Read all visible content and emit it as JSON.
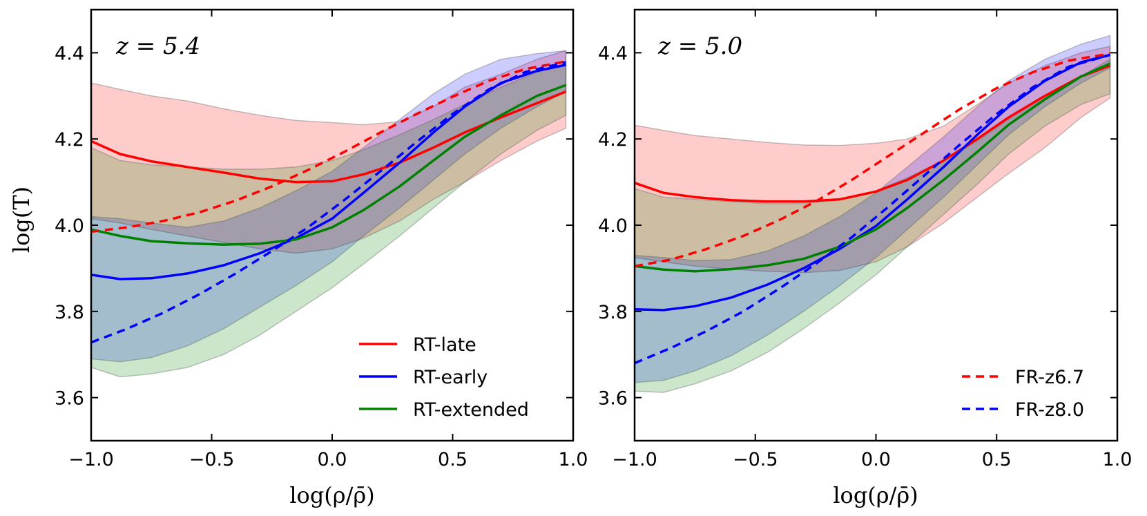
{
  "figure": {
    "ylabel": "log(T)"
  },
  "chart_data": [
    {
      "type": "line",
      "annotation": "z = 5.4",
      "xlabel": "log(ρ/ρ̄)",
      "ylabel": "log(T)",
      "xlim": [
        -1.0,
        1.0
      ],
      "ylim": [
        3.5,
        4.5
      ],
      "xticks": [
        "−1.0",
        "−0.5",
        "0.0",
        "0.5",
        "1.0"
      ],
      "xtick_values": [
        -1.0,
        -0.5,
        0.0,
        0.5,
        1.0
      ],
      "yticks": [
        "3.6",
        "3.8",
        "4.0",
        "4.2",
        "4.4"
      ],
      "ytick_values": [
        3.6,
        3.8,
        4.0,
        4.2,
        4.4
      ],
      "legend": {
        "placement": "lower-right",
        "entries": [
          "RT-late",
          "RT-early",
          "RT-extended"
        ]
      },
      "series": [
        {
          "name": "RT-late",
          "color": "#ff0000",
          "style": "solid",
          "x": [
            -1.0,
            -0.88,
            -0.75,
            -0.6,
            -0.45,
            -0.3,
            -0.15,
            0.0,
            0.13,
            0.28,
            0.42,
            0.55,
            0.7,
            0.85,
            0.97
          ],
          "y": [
            4.195,
            4.165,
            4.148,
            4.135,
            4.122,
            4.108,
            4.1,
            4.102,
            4.118,
            4.145,
            4.18,
            4.215,
            4.25,
            4.283,
            4.31
          ],
          "band_upper": [
            4.33,
            4.315,
            4.3,
            4.288,
            4.27,
            4.255,
            4.243,
            4.238,
            4.233,
            4.24,
            4.275,
            4.32,
            4.35,
            4.385,
            4.405
          ],
          "band_lower": [
            4.015,
            4.005,
            3.99,
            3.975,
            3.96,
            3.945,
            3.935,
            3.945,
            3.97,
            4.01,
            4.06,
            4.1,
            4.15,
            4.195,
            4.225
          ]
        },
        {
          "name": "RT-early",
          "color": "#0000ff",
          "style": "solid",
          "x": [
            -1.0,
            -0.88,
            -0.75,
            -0.6,
            -0.45,
            -0.3,
            -0.15,
            0.0,
            0.13,
            0.28,
            0.42,
            0.55,
            0.7,
            0.85,
            0.97
          ],
          "y": [
            3.885,
            3.875,
            3.877,
            3.888,
            3.907,
            3.935,
            3.97,
            4.015,
            4.075,
            4.145,
            4.215,
            4.275,
            4.33,
            4.358,
            4.372
          ],
          "band_upper": [
            4.02,
            4.015,
            4.005,
            3.995,
            4.01,
            4.04,
            4.08,
            4.125,
            4.18,
            4.245,
            4.305,
            4.35,
            4.385,
            4.398,
            4.405
          ],
          "band_lower": [
            3.69,
            3.683,
            3.693,
            3.72,
            3.76,
            3.81,
            3.86,
            3.915,
            3.975,
            4.04,
            4.105,
            4.165,
            4.225,
            4.275,
            4.31
          ]
        },
        {
          "name": "RT-extended",
          "color": "#008000",
          "style": "solid",
          "x": [
            -1.0,
            -0.88,
            -0.75,
            -0.6,
            -0.45,
            -0.3,
            -0.15,
            0.0,
            0.13,
            0.28,
            0.42,
            0.55,
            0.7,
            0.85,
            0.97
          ],
          "y": [
            3.99,
            3.975,
            3.963,
            3.958,
            3.955,
            3.957,
            3.967,
            3.995,
            4.035,
            4.09,
            4.15,
            4.205,
            4.255,
            4.3,
            4.325
          ],
          "band_upper": [
            4.18,
            4.15,
            4.14,
            4.135,
            4.13,
            4.13,
            4.135,
            4.15,
            4.175,
            4.21,
            4.245,
            4.28,
            4.32,
            4.355,
            4.375
          ],
          "band_lower": [
            3.67,
            3.648,
            3.655,
            3.67,
            3.7,
            3.745,
            3.8,
            3.855,
            3.91,
            3.975,
            4.04,
            4.1,
            4.165,
            4.22,
            4.255
          ]
        },
        {
          "name": "FR-z6.7",
          "color": "#ff0000",
          "style": "dashed",
          "x": [
            -1.0,
            -0.85,
            -0.7,
            -0.55,
            -0.4,
            -0.25,
            -0.1,
            0.05,
            0.2,
            0.35,
            0.5,
            0.65,
            0.8,
            0.97
          ],
          "y": [
            3.985,
            3.995,
            4.01,
            4.03,
            4.057,
            4.09,
            4.128,
            4.17,
            4.215,
            4.258,
            4.298,
            4.335,
            4.362,
            4.38
          ]
        },
        {
          "name": "FR-z8.0",
          "color": "#0000ff",
          "style": "dashed",
          "x": [
            -1.0,
            -0.85,
            -0.7,
            -0.55,
            -0.4,
            -0.25,
            -0.1,
            0.05,
            0.2,
            0.35,
            0.5,
            0.65,
            0.8,
            0.97
          ],
          "y": [
            3.728,
            3.76,
            3.797,
            3.84,
            3.888,
            3.94,
            3.995,
            4.058,
            4.125,
            4.193,
            4.258,
            4.315,
            4.355,
            4.378
          ]
        }
      ]
    },
    {
      "type": "line",
      "annotation": "z = 5.0",
      "xlabel": "log(ρ/ρ̄)",
      "xlim": [
        -1.0,
        1.0
      ],
      "ylim": [
        3.5,
        4.5
      ],
      "xticks": [
        "−1.0",
        "−0.5",
        "0.0",
        "0.5",
        "1.0"
      ],
      "xtick_values": [
        -1.0,
        -0.5,
        0.0,
        0.5,
        1.0
      ],
      "yticks": [
        "3.6",
        "3.8",
        "4.0",
        "4.2",
        "4.4"
      ],
      "ytick_values": [
        3.6,
        3.8,
        4.0,
        4.2,
        4.4
      ],
      "legend": {
        "placement": "lower-right",
        "entries": [
          "FR-z6.7",
          "FR-z8.0"
        ]
      },
      "series": [
        {
          "name": "RT-late",
          "color": "#ff0000",
          "style": "solid",
          "x": [
            -1.0,
            -0.88,
            -0.75,
            -0.6,
            -0.45,
            -0.3,
            -0.15,
            0.0,
            0.13,
            0.28,
            0.42,
            0.55,
            0.7,
            0.85,
            0.97
          ],
          "y": [
            4.098,
            4.075,
            4.065,
            4.058,
            4.055,
            4.055,
            4.06,
            4.078,
            4.105,
            4.15,
            4.2,
            4.25,
            4.3,
            4.345,
            4.37
          ],
          "band_upper": [
            4.232,
            4.22,
            4.208,
            4.2,
            4.192,
            4.186,
            4.185,
            4.19,
            4.2,
            4.23,
            4.28,
            4.33,
            4.37,
            4.4,
            4.415
          ],
          "band_lower": [
            3.925,
            3.915,
            3.905,
            3.898,
            3.893,
            3.89,
            3.895,
            3.915,
            3.95,
            4.005,
            4.065,
            4.12,
            4.18,
            4.25,
            4.295
          ]
        },
        {
          "name": "RT-early",
          "color": "#0000ff",
          "style": "solid",
          "x": [
            -1.0,
            -0.88,
            -0.75,
            -0.6,
            -0.45,
            -0.3,
            -0.15,
            0.0,
            0.13,
            0.28,
            0.42,
            0.55,
            0.7,
            0.85,
            0.97
          ],
          "y": [
            3.805,
            3.803,
            3.812,
            3.832,
            3.862,
            3.9,
            3.945,
            3.998,
            4.06,
            4.135,
            4.21,
            4.275,
            4.335,
            4.378,
            4.395
          ],
          "band_upper": [
            3.93,
            3.925,
            3.918,
            3.92,
            3.94,
            3.975,
            4.02,
            4.075,
            4.135,
            4.205,
            4.275,
            4.335,
            4.385,
            4.42,
            4.44
          ],
          "band_lower": [
            3.635,
            3.64,
            3.662,
            3.697,
            3.745,
            3.8,
            3.86,
            3.925,
            3.99,
            4.065,
            4.14,
            4.21,
            4.275,
            4.33,
            4.365
          ]
        },
        {
          "name": "RT-extended",
          "color": "#008000",
          "style": "solid",
          "x": [
            -1.0,
            -0.88,
            -0.75,
            -0.6,
            -0.45,
            -0.3,
            -0.15,
            0.0,
            0.13,
            0.28,
            0.42,
            0.55,
            0.7,
            0.85,
            0.97
          ],
          "y": [
            3.905,
            3.897,
            3.893,
            3.898,
            3.907,
            3.922,
            3.95,
            3.99,
            4.04,
            4.105,
            4.17,
            4.233,
            4.292,
            4.345,
            4.375
          ],
          "band_upper": [
            4.085,
            4.065,
            4.06,
            4.055,
            4.05,
            4.05,
            4.06,
            4.08,
            4.11,
            4.15,
            4.195,
            4.245,
            4.295,
            4.345,
            4.385
          ],
          "band_lower": [
            3.615,
            3.612,
            3.632,
            3.662,
            3.705,
            3.76,
            3.82,
            3.885,
            3.95,
            4.025,
            4.095,
            4.165,
            4.23,
            4.28,
            4.305
          ]
        },
        {
          "name": "FR-z6.7",
          "color": "#ff0000",
          "style": "dashed",
          "x": [
            -1.0,
            -0.85,
            -0.7,
            -0.55,
            -0.4,
            -0.25,
            -0.1,
            0.05,
            0.2,
            0.35,
            0.5,
            0.65,
            0.8,
            0.97
          ],
          "y": [
            3.905,
            3.92,
            3.945,
            3.975,
            4.012,
            4.055,
            4.105,
            4.16,
            4.215,
            4.27,
            4.318,
            4.355,
            4.382,
            4.398
          ]
        },
        {
          "name": "FR-z8.0",
          "color": "#0000ff",
          "style": "dashed",
          "x": [
            -1.0,
            -0.85,
            -0.7,
            -0.55,
            -0.4,
            -0.25,
            -0.1,
            0.05,
            0.2,
            0.35,
            0.5,
            0.65,
            0.8,
            0.97
          ],
          "y": [
            3.68,
            3.715,
            3.755,
            3.8,
            3.853,
            3.91,
            3.972,
            4.042,
            4.115,
            4.188,
            4.258,
            4.32,
            4.368,
            4.395
          ]
        }
      ]
    }
  ]
}
